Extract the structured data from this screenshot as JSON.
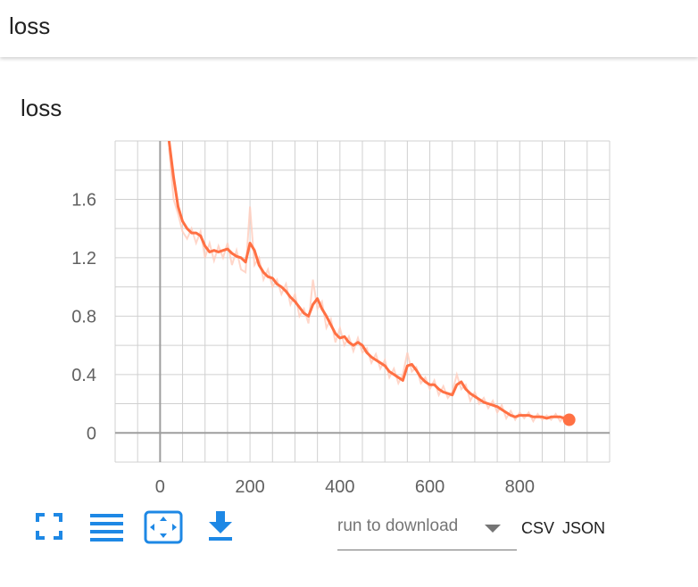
{
  "header": {
    "title": "loss"
  },
  "card": {
    "title": "loss"
  },
  "toolbar": {
    "fit_icon": "fullscreen-icon",
    "log_icon": "lines-icon",
    "domain_icon": "fit-domain-icon",
    "download_icon": "download-icon"
  },
  "download": {
    "placeholder": "run to download",
    "csv_label": "CSV",
    "json_label": "JSON"
  },
  "colors": {
    "accent": "#1e88e5",
    "series": "#ff7043",
    "series_raw": "#ffccbc",
    "grid": "#d0d0d0",
    "axis": "#9e9e9e"
  },
  "chart_data": {
    "type": "line",
    "title": "",
    "xlabel": "",
    "ylabel": "",
    "xlim": [
      -100,
      1000
    ],
    "ylim": [
      -0.2,
      2.0
    ],
    "x_ticks": [
      0,
      200,
      400,
      600,
      800
    ],
    "y_ticks": [
      0,
      0.4,
      0.8,
      1.2,
      1.6
    ],
    "x_tick_labels": [
      "0",
      "200",
      "400",
      "600",
      "800"
    ],
    "y_tick_labels": [
      "0",
      "0.4",
      "0.8",
      "1.2",
      "1.6"
    ],
    "grid": true,
    "series": [
      {
        "name": "",
        "style": "smoothed",
        "x": [
          20,
          30,
          40,
          50,
          60,
          70,
          80,
          90,
          100,
          110,
          120,
          130,
          140,
          150,
          160,
          170,
          180,
          190,
          200,
          210,
          220,
          230,
          240,
          250,
          260,
          270,
          280,
          290,
          300,
          310,
          320,
          330,
          340,
          350,
          360,
          370,
          380,
          390,
          400,
          410,
          420,
          430,
          440,
          450,
          460,
          470,
          480,
          490,
          500,
          510,
          520,
          530,
          540,
          550,
          560,
          570,
          580,
          590,
          600,
          610,
          620,
          630,
          640,
          650,
          660,
          670,
          680,
          690,
          700,
          710,
          720,
          730,
          740,
          750,
          760,
          770,
          780,
          790,
          800,
          810,
          820,
          830,
          840,
          850,
          860,
          870,
          880,
          890,
          900,
          910
        ],
        "values": [
          2.0,
          1.75,
          1.55,
          1.45,
          1.4,
          1.37,
          1.37,
          1.35,
          1.28,
          1.24,
          1.25,
          1.24,
          1.25,
          1.26,
          1.23,
          1.21,
          1.2,
          1.17,
          1.3,
          1.25,
          1.15,
          1.1,
          1.07,
          1.06,
          1.02,
          1.0,
          0.97,
          0.93,
          0.9,
          0.86,
          0.82,
          0.8,
          0.88,
          0.92,
          0.85,
          0.8,
          0.74,
          0.68,
          0.65,
          0.66,
          0.62,
          0.6,
          0.62,
          0.6,
          0.55,
          0.52,
          0.5,
          0.48,
          0.46,
          0.42,
          0.4,
          0.38,
          0.36,
          0.46,
          0.47,
          0.43,
          0.38,
          0.35,
          0.33,
          0.33,
          0.3,
          0.28,
          0.27,
          0.26,
          0.33,
          0.35,
          0.3,
          0.27,
          0.25,
          0.23,
          0.21,
          0.2,
          0.19,
          0.18,
          0.16,
          0.14,
          0.12,
          0.11,
          0.12,
          0.12,
          0.12,
          0.11,
          0.11,
          0.11,
          0.1,
          0.11,
          0.11,
          0.11,
          0.1,
          0.09
        ]
      },
      {
        "name": "",
        "style": "raw",
        "x": [
          20,
          30,
          40,
          50,
          60,
          70,
          80,
          90,
          100,
          110,
          120,
          130,
          140,
          150,
          160,
          170,
          180,
          190,
          200,
          210,
          220,
          230,
          240,
          250,
          260,
          270,
          280,
          290,
          300,
          310,
          320,
          330,
          340,
          350,
          360,
          370,
          380,
          390,
          400,
          410,
          420,
          430,
          440,
          450,
          460,
          470,
          480,
          490,
          500,
          510,
          520,
          530,
          540,
          550,
          560,
          570,
          580,
          590,
          600,
          610,
          620,
          630,
          640,
          650,
          660,
          670,
          680,
          690,
          700,
          710,
          720,
          730,
          740,
          750,
          760,
          770,
          780,
          790,
          800,
          810,
          820,
          830,
          840,
          850,
          860,
          870,
          880,
          890,
          900,
          910
        ],
        "values": [
          1.95,
          1.6,
          1.5,
          1.38,
          1.33,
          1.4,
          1.3,
          1.38,
          1.2,
          1.3,
          1.18,
          1.28,
          1.2,
          1.3,
          1.15,
          1.25,
          1.12,
          1.1,
          1.55,
          1.15,
          1.2,
          1.05,
          1.12,
          1.0,
          1.05,
          0.95,
          1.02,
          0.88,
          0.95,
          0.8,
          0.85,
          0.75,
          1.05,
          0.85,
          0.9,
          0.72,
          0.78,
          0.62,
          0.72,
          0.6,
          0.66,
          0.56,
          0.65,
          0.55,
          0.58,
          0.48,
          0.54,
          0.44,
          0.5,
          0.38,
          0.44,
          0.34,
          0.4,
          0.55,
          0.42,
          0.45,
          0.34,
          0.38,
          0.3,
          0.36,
          0.26,
          0.32,
          0.24,
          0.28,
          0.4,
          0.3,
          0.33,
          0.22,
          0.28,
          0.2,
          0.24,
          0.17,
          0.22,
          0.14,
          0.19,
          0.1,
          0.15,
          0.09,
          0.14,
          0.1,
          0.14,
          0.08,
          0.13,
          0.09,
          0.12,
          0.09,
          0.13,
          0.08,
          0.12,
          0.08
        ]
      }
    ],
    "last_point": {
      "x": 910,
      "y": 0.09
    }
  }
}
